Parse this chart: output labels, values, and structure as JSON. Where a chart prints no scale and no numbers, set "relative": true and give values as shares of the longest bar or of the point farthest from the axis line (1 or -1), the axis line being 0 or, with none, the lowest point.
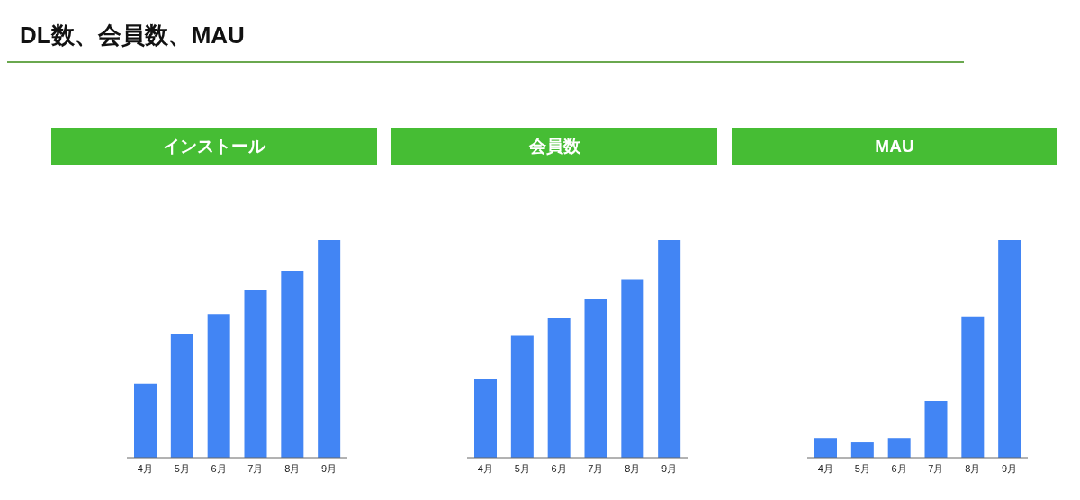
{
  "chart_data": [
    {
      "type": "other",
      "title": "DL数、会員数、MAU"
    },
    {
      "type": "bar",
      "title": "インストール",
      "categories": [
        "4月",
        "5月",
        "6月",
        "7月",
        "8月",
        "9月"
      ],
      "relative": true,
      "color": "#4285f4",
      "values": [
        0.34,
        0.57,
        0.66,
        0.77,
        0.86,
        1
      ]
    },
    {
      "type": "bar",
      "title": "会員数",
      "categories": [
        "4月",
        "5月",
        "6月",
        "7月",
        "8月",
        "9月"
      ],
      "relative": true,
      "color": "#4285f4",
      "values": [
        0.36,
        0.56,
        0.64,
        0.73,
        0.82,
        1
      ]
    },
    {
      "type": "bar",
      "title": "MAU",
      "categories": [
        "4月",
        "5月",
        "6月",
        "7月",
        "8月",
        "9月"
      ],
      "relative": true,
      "color": "#4285f4",
      "values": [
        0.09,
        0.07,
        0.09,
        0.26,
        0.65,
        1
      ]
    }
  ]
}
